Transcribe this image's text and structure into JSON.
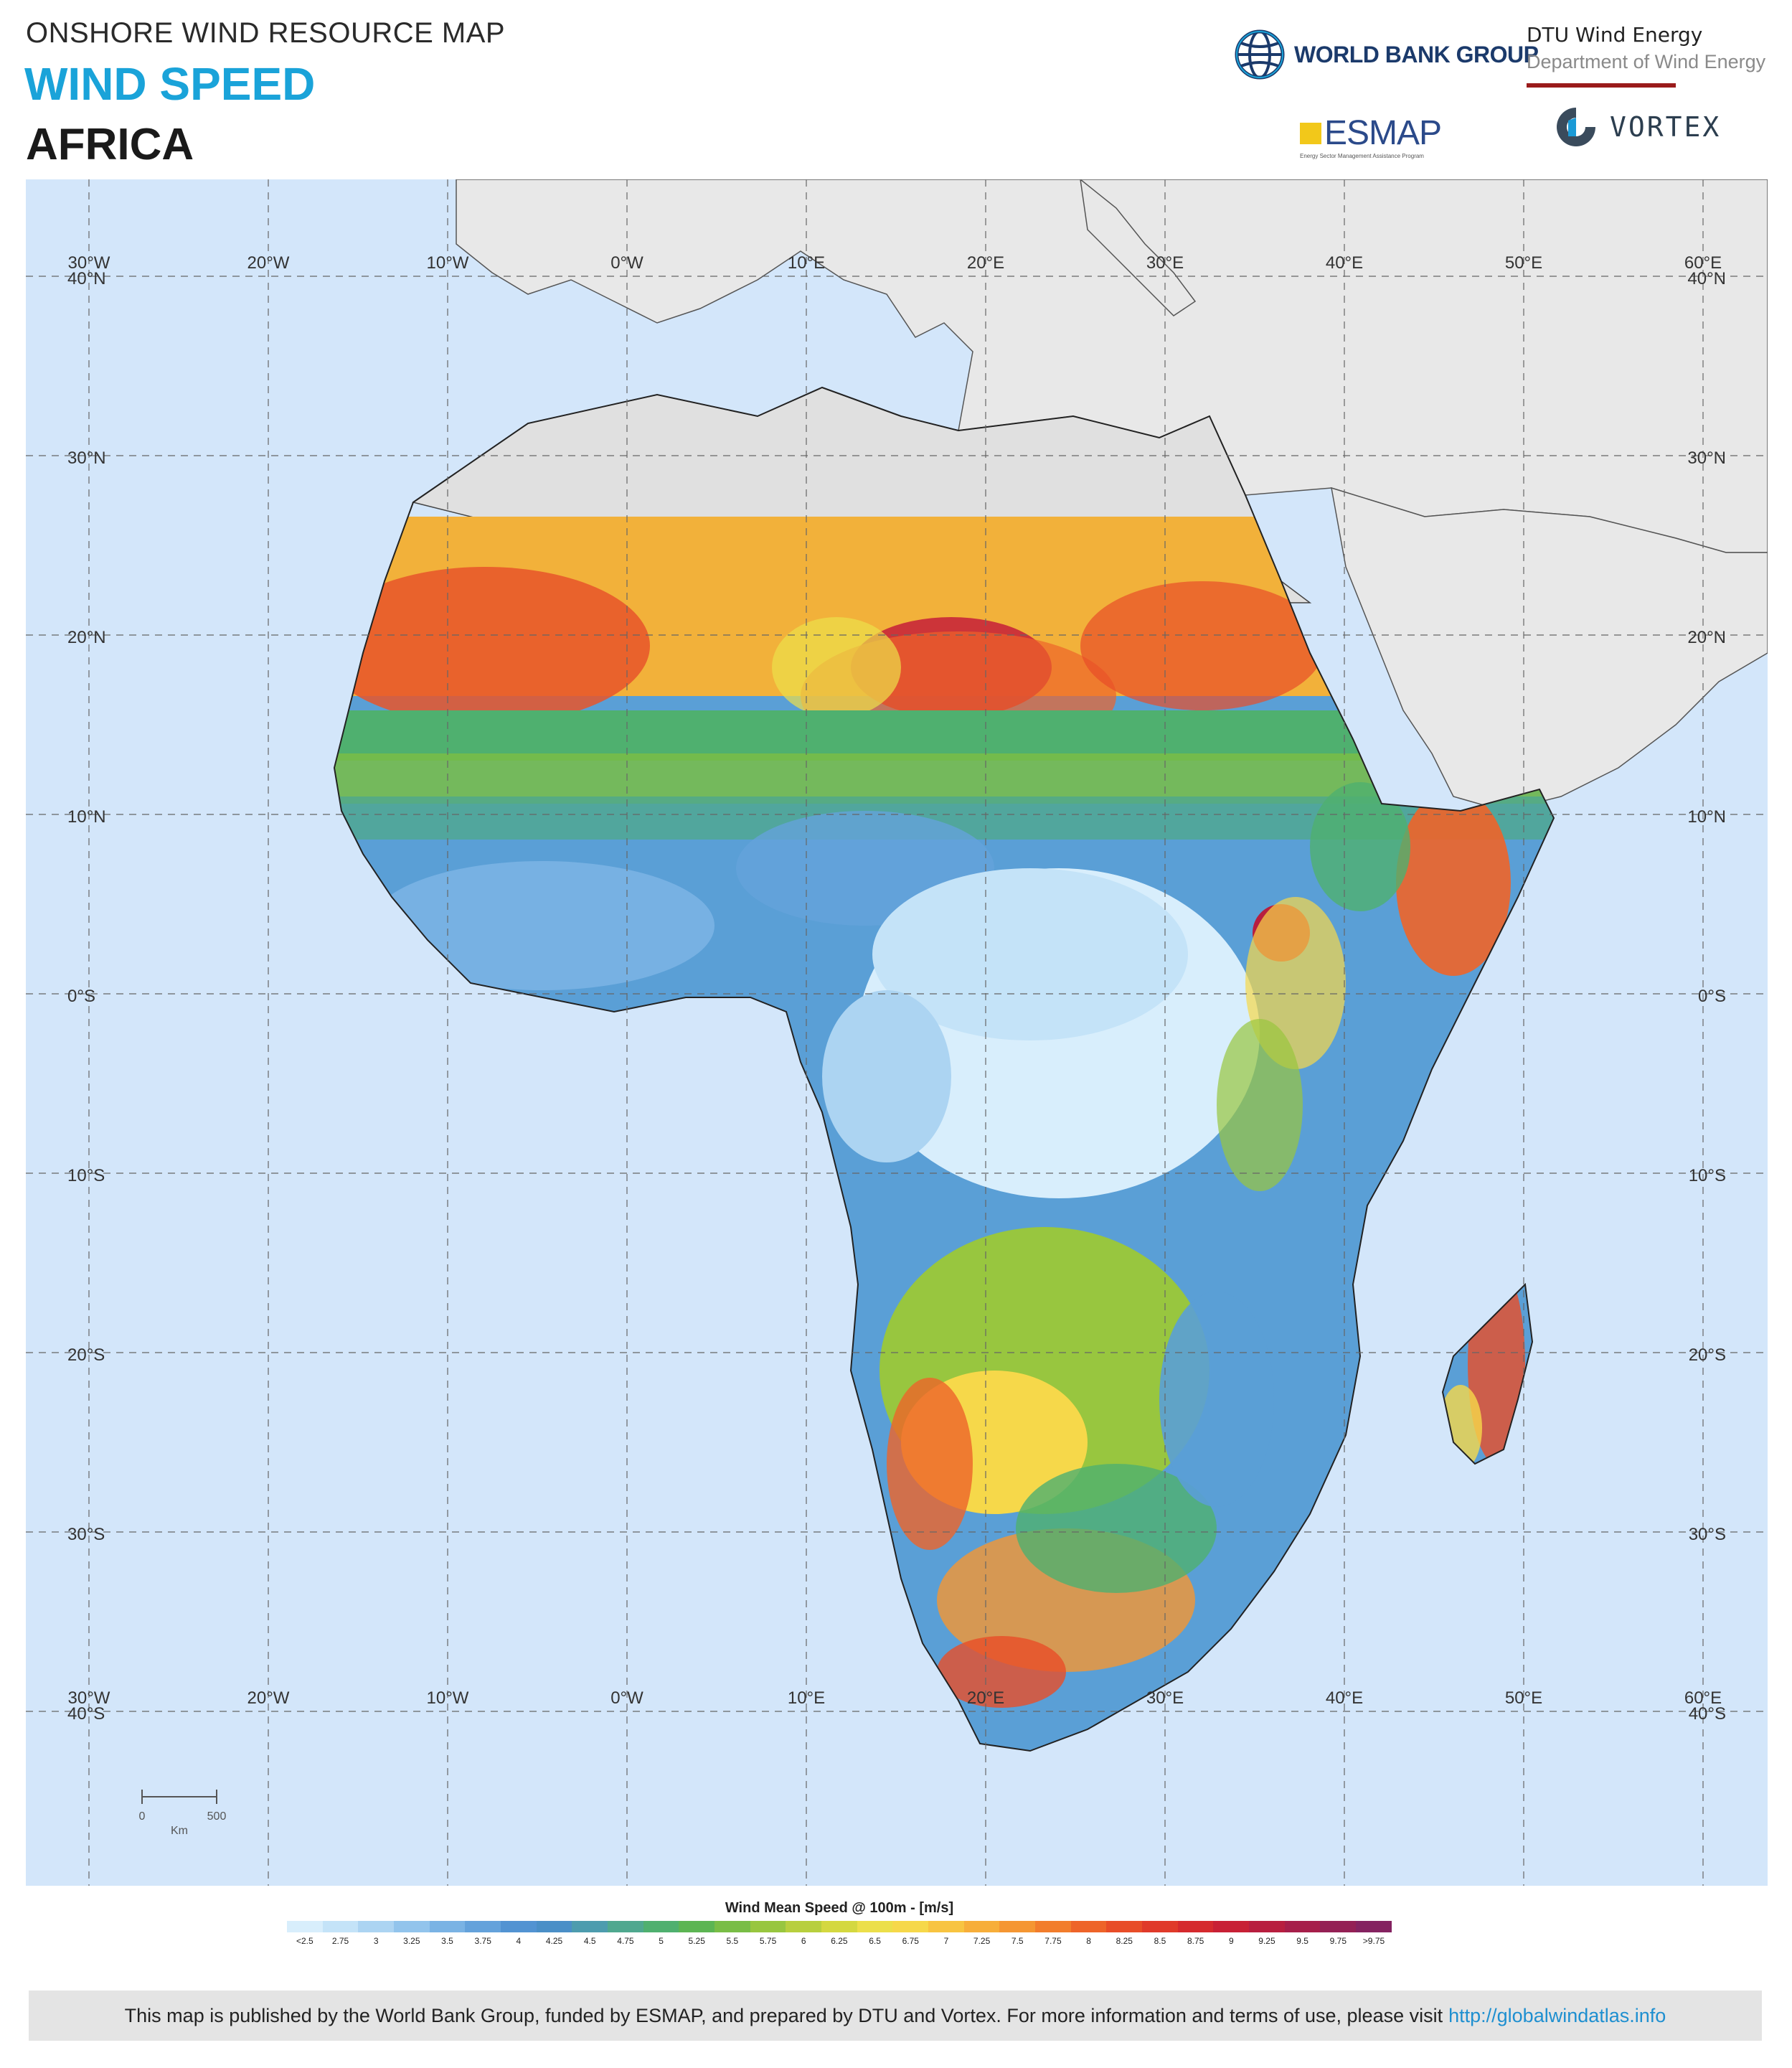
{
  "header": {
    "subtitle": "ONSHORE WIND RESOURCE MAP",
    "title": "WIND SPEED",
    "region": "AFRICA"
  },
  "logos": {
    "world_bank": "WORLD BANK GROUP",
    "dtu_line1": "DTU Wind Energy",
    "dtu_line2": "Department of Wind Energy",
    "esmap": "ESMAP",
    "esmap_tagline": "Energy Sector Management Assistance Program",
    "vortex": "VORTEX"
  },
  "map": {
    "lon_labels": [
      "30°W",
      "20°W",
      "10°W",
      "0°W",
      "10°E",
      "20°E",
      "30°E",
      "40°E",
      "50°E",
      "60°E"
    ],
    "lat_labels_left": [
      "40°N",
      "30°N",
      "20°N",
      "10°N",
      "0°S",
      "10°S",
      "20°S",
      "30°S",
      "40°S"
    ],
    "lat_labels_right": [
      "40°N",
      "30°N",
      "20°N",
      "10°N",
      "0°S",
      "10°S",
      "20°S",
      "30°S",
      "40°S"
    ],
    "scale_bar": {
      "start": "0",
      "end": "500",
      "unit": "Km"
    }
  },
  "legend": {
    "title": "Wind Mean Speed @ 100m - [m/s]",
    "ticks": [
      "<2.5",
      "2.75",
      "3",
      "3.25",
      "3.5",
      "3.75",
      "4",
      "4.25",
      "4.5",
      "4.75",
      "5",
      "5.25",
      "5.5",
      "5.75",
      "6",
      "6.25",
      "6.5",
      "6.75",
      "7",
      "7.25",
      "7.5",
      "7.75",
      "8",
      "8.25",
      "8.5",
      "8.75",
      "9",
      "9.25",
      "9.5",
      "9.75",
      ">9.75"
    ],
    "colors": [
      "#d8eefc",
      "#c4e3f8",
      "#acd4f2",
      "#92c4ec",
      "#7ab3e4",
      "#64a2db",
      "#5293d2",
      "#4a8fc7",
      "#4d9cae",
      "#4fa88f",
      "#4fb06f",
      "#5cb553",
      "#79bd46",
      "#98c63f",
      "#b8cf3e",
      "#d4d840",
      "#ecdf4a",
      "#f6d84a",
      "#f8c441",
      "#f7ae3a",
      "#f59632",
      "#f27d2c",
      "#ee6429",
      "#e84d28",
      "#e03a2a",
      "#d52a2e",
      "#c82035",
      "#b81e3f",
      "#a61e4a",
      "#942055",
      "#842260"
    ]
  },
  "footer": {
    "text": "This  map is published by the World Bank Group, funded by ESMAP, and prepared by DTU and Vortex. For more information and terms of use, please visit",
    "link": "http://globalwindatlas.info"
  }
}
